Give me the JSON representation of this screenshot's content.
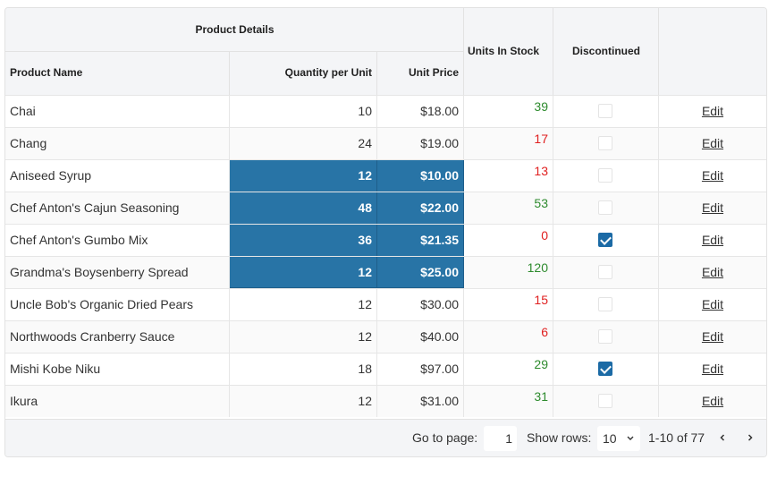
{
  "header": {
    "group_label": "Product Details",
    "columns": {
      "product_name": "Product Name",
      "quantity_per_unit": "Quantity per Unit",
      "unit_price": "Unit Price",
      "units_in_stock": "Units In Stock",
      "discontinued": "Discontinued"
    }
  },
  "rows": [
    {
      "name": "Chai",
      "qty": "10",
      "price": "$18.00",
      "stock": "39",
      "discontinued": false,
      "edit": "Edit"
    },
    {
      "name": "Chang",
      "qty": "24",
      "price": "$19.00",
      "stock": "17",
      "discontinued": false,
      "edit": "Edit"
    },
    {
      "name": "Aniseed Syrup",
      "qty": "12",
      "price": "$10.00",
      "stock": "13",
      "discontinued": false,
      "edit": "Edit"
    },
    {
      "name": "Chef Anton's Cajun Seasoning",
      "qty": "48",
      "price": "$22.00",
      "stock": "53",
      "discontinued": false,
      "edit": "Edit"
    },
    {
      "name": "Chef Anton's Gumbo Mix",
      "qty": "36",
      "price": "$21.35",
      "stock": "0",
      "discontinued": true,
      "edit": "Edit"
    },
    {
      "name": "Grandma's Boysenberry Spread",
      "qty": "12",
      "price": "$25.00",
      "stock": "120",
      "discontinued": false,
      "edit": "Edit"
    },
    {
      "name": "Uncle Bob's Organic Dried Pears",
      "qty": "12",
      "price": "$30.00",
      "stock": "15",
      "discontinued": false,
      "edit": "Edit"
    },
    {
      "name": "Northwoods Cranberry Sauce",
      "qty": "12",
      "price": "$40.00",
      "stock": "6",
      "discontinued": false,
      "edit": "Edit"
    },
    {
      "name": "Mishi Kobe Niku",
      "qty": "18",
      "price": "$97.00",
      "stock": "29",
      "discontinued": true,
      "edit": "Edit"
    },
    {
      "name": "Ikura",
      "qty": "12",
      "price": "$31.00",
      "stock": "31",
      "discontinued": false,
      "edit": "Edit"
    }
  ],
  "selection": {
    "rows": [
      2,
      3,
      4,
      5
    ],
    "columns": [
      "quantity_per_unit",
      "unit_price"
    ]
  },
  "pager": {
    "go_to_page_label": "Go to page:",
    "page_value": "1",
    "show_rows_label": "Show rows:",
    "rows_value": "10",
    "range_text": "1-10 of 77",
    "prev_icon": "chevron-left-icon",
    "next_icon": "chevron-right-icon",
    "dropdown_icon": "chevron-down-icon"
  },
  "colors": {
    "selection": "#2874a6",
    "stock_high": "#2e8b2e",
    "stock_low": "#e02020",
    "checkbox_on": "#1b6aa5",
    "header_bg": "#f4f5f7"
  }
}
